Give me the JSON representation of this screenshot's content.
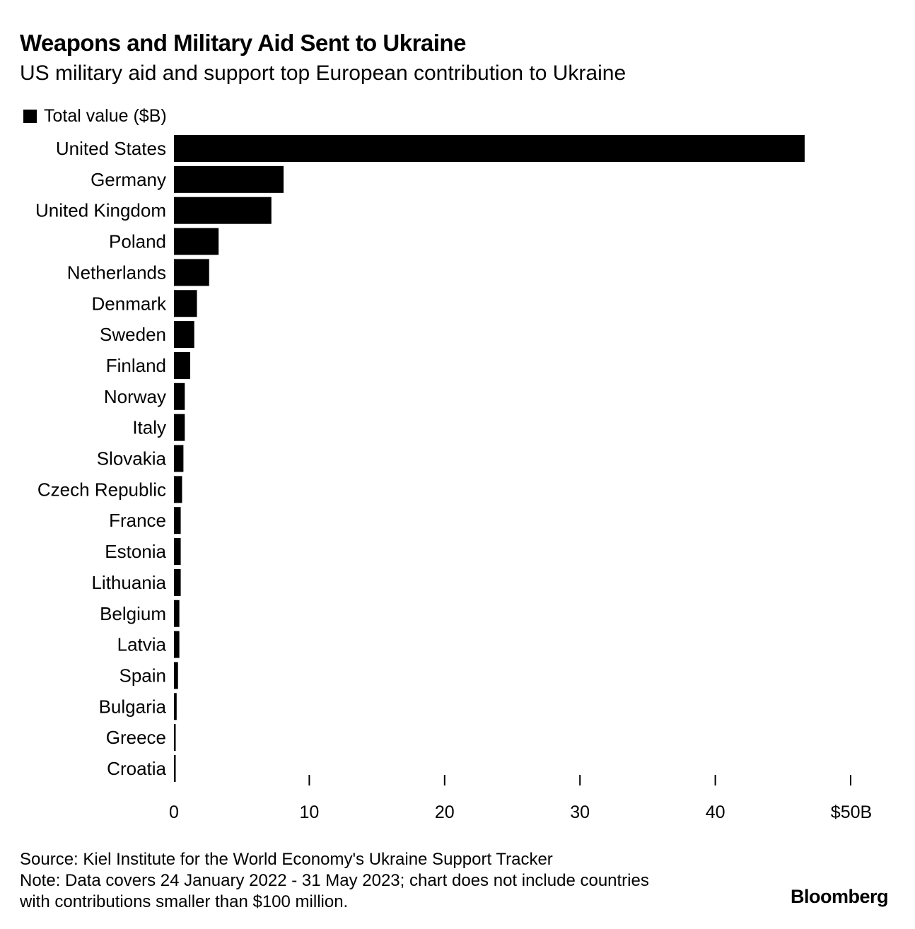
{
  "header": {
    "title": "Weapons and Military Aid Sent to Ukraine",
    "subtitle": "US military aid and support top European contribution to Ukraine"
  },
  "chart_data": {
    "type": "bar",
    "orientation": "horizontal",
    "categories": [
      "United States",
      "Germany",
      "United Kingdom",
      "Poland",
      "Netherlands",
      "Denmark",
      "Sweden",
      "Finland",
      "Norway",
      "Italy",
      "Slovakia",
      "Czech Republic",
      "France",
      "Estonia",
      "Lithuania",
      "Belgium",
      "Latvia",
      "Spain",
      "Bulgaria",
      "Greece",
      "Croatia"
    ],
    "series": [
      {
        "name": "Total value ($B)",
        "color": "#000000",
        "values": [
          46.6,
          8.1,
          7.2,
          3.3,
          2.6,
          1.7,
          1.5,
          1.2,
          0.8,
          0.8,
          0.7,
          0.6,
          0.5,
          0.5,
          0.5,
          0.4,
          0.4,
          0.3,
          0.2,
          0.1,
          0.1
        ]
      }
    ],
    "xlim": [
      0,
      50
    ],
    "xticks": [
      0,
      10,
      20,
      30,
      40,
      50
    ],
    "xtick_labels": [
      "0",
      "10",
      "20",
      "30",
      "40",
      "$50B"
    ],
    "legend": "top-left",
    "grid": false
  },
  "footer": {
    "source": "Source: Kiel Institute for the World Economy's Ukraine Support Tracker",
    "note_line1": "Note: Data covers 24 January 2022 - 31 May 2023; chart does not include countries",
    "note_line2": "with contributions smaller than $100 million.",
    "brand": "Bloomberg"
  }
}
